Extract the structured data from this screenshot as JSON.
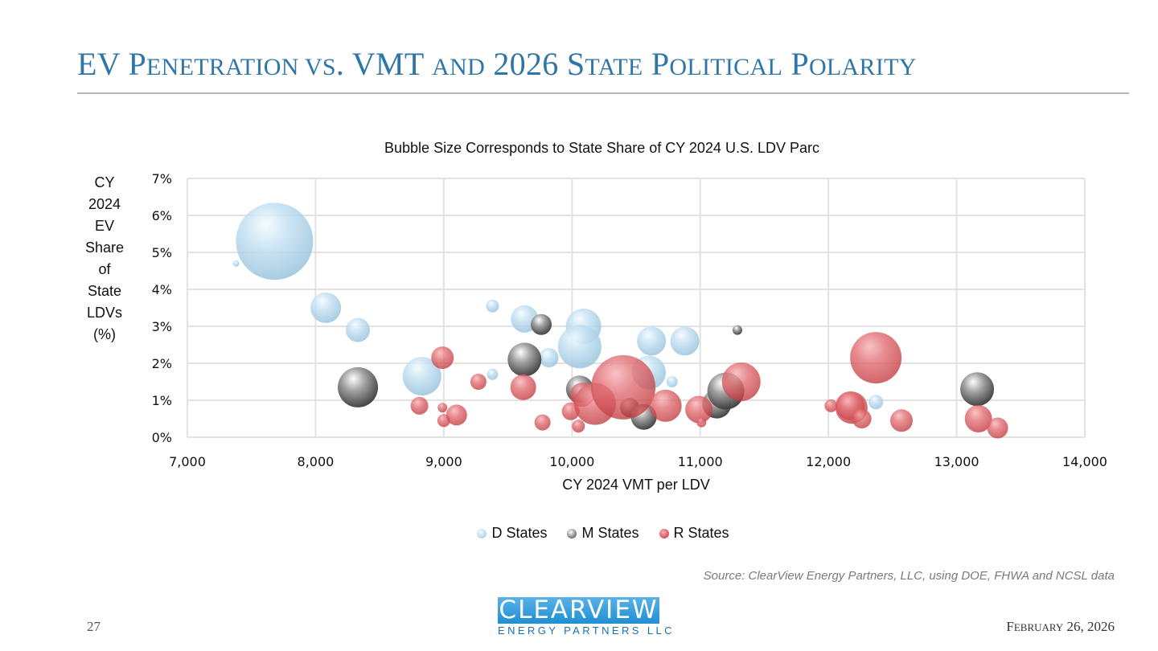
{
  "header": {
    "title_parts": [
      {
        "text": "EV P",
        "small": false
      },
      {
        "text": "ENETRATION VS",
        "small": true
      },
      {
        "text": ". VMT ",
        "small": false
      },
      {
        "text": "AND",
        "small": true
      },
      {
        "text": " 2026 S",
        "small": false
      },
      {
        "text": "TATE",
        "small": true
      },
      {
        "text": " P",
        "small": false
      },
      {
        "text": "OLITICAL",
        "small": true
      },
      {
        "text": " P",
        "small": false
      },
      {
        "text": "OLARITY",
        "small": true
      }
    ]
  },
  "footer": {
    "source": "Source: ClearView Energy Partners, LLC, using DOE, FHWA and NCSL data",
    "page_number": "27",
    "date_first": "F",
    "date_rest": "EBRUARY",
    "date_tail": " 26, 2026",
    "logo_main": "CLEARVIEW",
    "logo_tag": "ENERGY PARTNERS LLC"
  },
  "colors": {
    "D": "#b9d9ee",
    "M": "#8a8a8a",
    "R": "#e06a6f",
    "title": "#2e75a8"
  },
  "chart_data": {
    "type": "bubble",
    "title": "Bubble Size Corresponds to State Share of CY 2024 U.S. LDV Parc",
    "xlabel": "CY 2024 VMT per LDV",
    "ylabel_lines": [
      "CY",
      "2024",
      "EV",
      "Share",
      "of",
      "State",
      "LDVs",
      "(%)"
    ],
    "xlim": [
      7000,
      14000
    ],
    "ylim": [
      0,
      7
    ],
    "x_ticks": [
      "7,000",
      "8,000",
      "9,000",
      "10,000",
      "11,000",
      "12,000",
      "13,000",
      "14,000"
    ],
    "y_ticks": [
      "0%",
      "1%",
      "2%",
      "3%",
      "4%",
      "5%",
      "6%",
      "7%"
    ],
    "grid": true,
    "legend": {
      "position": "bottom",
      "entries": [
        "D States",
        "M States",
        "R States"
      ]
    },
    "size_units": "relative share of U.S. LDV parc",
    "series": [
      {
        "name": "D States",
        "key": "D",
        "points": [
          {
            "x": 7680,
            "y": 5.3,
            "s": 48
          },
          {
            "x": 7380,
            "y": 4.7,
            "s": 4
          },
          {
            "x": 8080,
            "y": 3.5,
            "s": 19
          },
          {
            "x": 8330,
            "y": 2.9,
            "s": 15
          },
          {
            "x": 8830,
            "y": 1.65,
            "s": 24
          },
          {
            "x": 9380,
            "y": 3.55,
            "s": 8
          },
          {
            "x": 9380,
            "y": 1.7,
            "s": 7
          },
          {
            "x": 9630,
            "y": 3.2,
            "s": 17
          },
          {
            "x": 9820,
            "y": 2.15,
            "s": 12
          },
          {
            "x": 10090,
            "y": 3.0,
            "s": 22
          },
          {
            "x": 10060,
            "y": 2.45,
            "s": 27
          },
          {
            "x": 10620,
            "y": 2.6,
            "s": 18
          },
          {
            "x": 10600,
            "y": 1.75,
            "s": 21
          },
          {
            "x": 10780,
            "y": 1.5,
            "s": 7
          },
          {
            "x": 10880,
            "y": 2.6,
            "s": 18
          },
          {
            "x": 12370,
            "y": 0.95,
            "s": 9
          }
        ]
      },
      {
        "name": "M States",
        "key": "M",
        "points": [
          {
            "x": 8330,
            "y": 1.35,
            "s": 25
          },
          {
            "x": 9630,
            "y": 2.1,
            "s": 21
          },
          {
            "x": 9760,
            "y": 3.05,
            "s": 13
          },
          {
            "x": 10060,
            "y": 1.3,
            "s": 17
          },
          {
            "x": 10450,
            "y": 0.8,
            "s": 12
          },
          {
            "x": 10560,
            "y": 0.55,
            "s": 16
          },
          {
            "x": 11130,
            "y": 0.9,
            "s": 18
          },
          {
            "x": 11200,
            "y": 1.25,
            "s": 23
          },
          {
            "x": 11290,
            "y": 2.9,
            "s": 6
          },
          {
            "x": 13160,
            "y": 1.3,
            "s": 21
          }
        ]
      },
      {
        "name": "R States",
        "key": "R",
        "points": [
          {
            "x": 8990,
            "y": 2.15,
            "s": 14
          },
          {
            "x": 8810,
            "y": 0.85,
            "s": 11
          },
          {
            "x": 8990,
            "y": 0.8,
            "s": 6
          },
          {
            "x": 9000,
            "y": 0.45,
            "s": 8
          },
          {
            "x": 9100,
            "y": 0.6,
            "s": 13
          },
          {
            "x": 9270,
            "y": 1.5,
            "s": 10
          },
          {
            "x": 9620,
            "y": 1.35,
            "s": 16
          },
          {
            "x": 9770,
            "y": 0.4,
            "s": 10
          },
          {
            "x": 9990,
            "y": 0.7,
            "s": 11
          },
          {
            "x": 10050,
            "y": 0.3,
            "s": 8
          },
          {
            "x": 10080,
            "y": 1.15,
            "s": 15
          },
          {
            "x": 10180,
            "y": 0.9,
            "s": 26
          },
          {
            "x": 10400,
            "y": 1.35,
            "s": 40
          },
          {
            "x": 10730,
            "y": 0.85,
            "s": 20
          },
          {
            "x": 10990,
            "y": 0.75,
            "s": 17
          },
          {
            "x": 11010,
            "y": 0.4,
            "s": 6
          },
          {
            "x": 11320,
            "y": 1.5,
            "s": 24
          },
          {
            "x": 12020,
            "y": 0.85,
            "s": 8
          },
          {
            "x": 12170,
            "y": 0.85,
            "s": 18
          },
          {
            "x": 12180,
            "y": 0.8,
            "s": 20
          },
          {
            "x": 12260,
            "y": 0.5,
            "s": 12
          },
          {
            "x": 12370,
            "y": 2.15,
            "s": 32
          },
          {
            "x": 12570,
            "y": 0.45,
            "s": 14
          },
          {
            "x": 13170,
            "y": 0.5,
            "s": 17
          },
          {
            "x": 13320,
            "y": 0.25,
            "s": 13
          }
        ]
      }
    ]
  }
}
